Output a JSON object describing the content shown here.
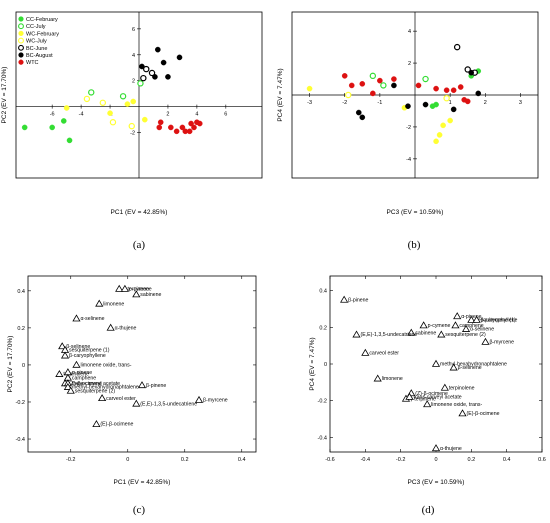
{
  "panel_labels": [
    "(a)",
    "(b)",
    "(c)",
    "(d)"
  ],
  "chart_data": [
    {
      "type": "scatter",
      "panel": "(a)",
      "xlabel": "PC1 (EV = 42.85%)",
      "ylabel": "PC2 (EV = 17.70%)",
      "xlim": [
        -8.5,
        8.5
      ],
      "ylim": [
        -5.5,
        7.3
      ],
      "xticks": [
        -6,
        -4,
        -2,
        2,
        4,
        6
      ],
      "yticks": [
        -2,
        2,
        4,
        6
      ],
      "axes_through_origin": true,
      "legend_position": "top-left",
      "series": [
        {
          "name": "CC-February",
          "color": "#33dd33",
          "filled": true,
          "points": [
            [
              -7.9,
              -1.6
            ],
            [
              -6.0,
              -1.6
            ],
            [
              -5.2,
              -1.1
            ],
            [
              -4.8,
              -2.6
            ]
          ]
        },
        {
          "name": "CC-July",
          "color": "#33dd33",
          "filled": false,
          "points": [
            [
              -3.3,
              1.1
            ],
            [
              -1.1,
              0.8
            ],
            [
              0.1,
              1.8
            ]
          ]
        },
        {
          "name": "WC-February",
          "color": "#ffff33",
          "filled": true,
          "points": [
            [
              -5.0,
              -0.1
            ],
            [
              -2.0,
              -0.5
            ],
            [
              -0.8,
              0.2
            ],
            [
              -0.4,
              0.4
            ],
            [
              0.4,
              -1.0
            ]
          ]
        },
        {
          "name": "WC-July",
          "color": "#ffff33",
          "filled": false,
          "points": [
            [
              -3.6,
              0.6
            ],
            [
              -2.5,
              0.3
            ],
            [
              -1.8,
              -1.2
            ],
            [
              -0.5,
              -1.5
            ]
          ]
        },
        {
          "name": "BC-June",
          "color": "#000000",
          "filled": false,
          "points": [
            [
              0.5,
              2.9
            ],
            [
              0.3,
              2.2
            ],
            [
              0.9,
              2.6
            ]
          ]
        },
        {
          "name": "BC-August",
          "color": "#000000",
          "filled": true,
          "points": [
            [
              0.2,
              3.1
            ],
            [
              1.1,
              2.3
            ],
            [
              1.3,
              4.4
            ],
            [
              2.0,
              2.3
            ],
            [
              2.8,
              3.8
            ],
            [
              1.7,
              3.4
            ]
          ]
        },
        {
          "name": "WTC",
          "color": "#dd1111",
          "filled": true,
          "points": [
            [
              1.5,
              -1.2
            ],
            [
              1.4,
              -1.6
            ],
            [
              2.2,
              -1.6
            ],
            [
              2.6,
              -1.9
            ],
            [
              3.0,
              -1.6
            ],
            [
              3.2,
              -1.9
            ],
            [
              3.5,
              -1.9
            ],
            [
              3.8,
              -1.6
            ],
            [
              4.0,
              -1.2
            ],
            [
              4.2,
              -1.3
            ],
            [
              3.6,
              -1.3
            ]
          ]
        }
      ]
    },
    {
      "type": "scatter",
      "panel": "(b)",
      "xlabel": "PC3 (EV = 10.59%)",
      "ylabel": "PC4 (EV = 7.47%)",
      "xlim": [
        -3.5,
        3.5
      ],
      "ylim": [
        -5.2,
        5.2
      ],
      "xticks": [
        -3,
        -2,
        -1,
        1,
        2,
        3
      ],
      "yticks": [
        -4,
        -2,
        2,
        4
      ],
      "axes_through_origin": true,
      "series": [
        {
          "name": "CC-February",
          "color": "#33dd33",
          "filled": true,
          "points": [
            [
              1.8,
              1.5
            ],
            [
              1.6,
              1.2
            ],
            [
              0.6,
              -0.6
            ],
            [
              0.5,
              -0.7
            ]
          ]
        },
        {
          "name": "CC-July",
          "color": "#33dd33",
          "filled": false,
          "points": [
            [
              -1.2,
              1.2
            ],
            [
              -0.9,
              0.6
            ],
            [
              0.3,
              1.0
            ]
          ]
        },
        {
          "name": "WC-February",
          "color": "#ffff33",
          "filled": true,
          "points": [
            [
              -3.0,
              0.4
            ],
            [
              -0.3,
              -0.8
            ],
            [
              0.8,
              -1.9
            ],
            [
              1.0,
              -1.6
            ],
            [
              0.7,
              -2.5
            ],
            [
              0.6,
              -2.9
            ]
          ]
        },
        {
          "name": "WC-July",
          "color": "#ffff33",
          "filled": false,
          "points": [
            [
              -1.9,
              0.0
            ],
            [
              0.9,
              -0.2
            ]
          ]
        },
        {
          "name": "BC-June",
          "color": "#000000",
          "filled": false,
          "points": [
            [
              1.2,
              3.0
            ],
            [
              1.5,
              1.6
            ],
            [
              1.7,
              1.4
            ]
          ]
        },
        {
          "name": "BC-August",
          "color": "#000000",
          "filled": true,
          "points": [
            [
              -1.6,
              -1.1
            ],
            [
              -1.5,
              -1.4
            ],
            [
              -0.6,
              0.6
            ],
            [
              -0.2,
              -0.7
            ],
            [
              0.3,
              -0.6
            ],
            [
              1.1,
              -0.9
            ],
            [
              1.8,
              0.1
            ],
            [
              1.6,
              1.4
            ]
          ]
        },
        {
          "name": "WTC",
          "color": "#dd1111",
          "filled": true,
          "points": [
            [
              -2.0,
              1.2
            ],
            [
              -1.8,
              0.6
            ],
            [
              -1.5,
              0.7
            ],
            [
              -1.2,
              0.1
            ],
            [
              -1.0,
              0.9
            ],
            [
              -0.6,
              1.0
            ],
            [
              0.1,
              0.6
            ],
            [
              0.6,
              0.4
            ],
            [
              0.9,
              0.3
            ],
            [
              1.1,
              0.3
            ],
            [
              1.3,
              0.5
            ],
            [
              1.4,
              -0.3
            ],
            [
              1.5,
              -0.4
            ]
          ]
        }
      ]
    },
    {
      "type": "scatter",
      "panel": "(c)",
      "xlabel": "PC1 (EV = 42.85%)",
      "ylabel": "PC2 (EV = 17.70%)",
      "xlim": [
        -0.35,
        0.45
      ],
      "ylim": [
        -0.47,
        0.48
      ],
      "xticks": [
        -0.2,
        0,
        0.2,
        0.4
      ],
      "yticks": [
        -0.4,
        -0.2,
        0,
        0.2,
        0.4
      ],
      "marker": "triangle-open",
      "points": [
        {
          "label": "γ-terpinene",
          "x": -0.03,
          "y": 0.41
        },
        {
          "label": "p-cymene",
          "x": -0.01,
          "y": 0.41
        },
        {
          "label": "sabinene",
          "x": 0.03,
          "y": 0.38
        },
        {
          "label": "limonene",
          "x": -0.1,
          "y": 0.33
        },
        {
          "label": "α-selinene",
          "x": -0.18,
          "y": 0.25
        },
        {
          "label": "α-thujene",
          "x": -0.06,
          "y": 0.2
        },
        {
          "label": "β-selinene",
          "x": -0.23,
          "y": 0.1
        },
        {
          "label": "sesquiterpene (1)",
          "x": -0.22,
          "y": 0.08
        },
        {
          "label": "β-caryophyllene",
          "x": -0.22,
          "y": 0.05
        },
        {
          "label": "limonene oxide, trans-",
          "x": -0.18,
          "y": 0.0
        },
        {
          "label": "terpinolene",
          "x": -0.24,
          "y": -0.05
        },
        {
          "label": "α-pinene",
          "x": -0.21,
          "y": -0.04
        },
        {
          "label": "camphene",
          "x": -0.21,
          "y": -0.07
        },
        {
          "label": "(Z)-β-ocimene",
          "x": -0.22,
          "y": -0.1
        },
        {
          "label": "trans-carveyl acetate",
          "x": -0.21,
          "y": -0.1
        },
        {
          "label": "methyl-hexahydronaphtalene",
          "x": -0.21,
          "y": -0.12
        },
        {
          "label": "sesquiterpene (2)",
          "x": -0.2,
          "y": -0.14
        },
        {
          "label": "β-pinene",
          "x": 0.05,
          "y": -0.11
        },
        {
          "label": "carveol ester",
          "x": -0.09,
          "y": -0.18
        },
        {
          "label": "β-myrcene",
          "x": 0.25,
          "y": -0.19
        },
        {
          "label": "(E,E)-1,3,5-undecatriene",
          "x": 0.03,
          "y": -0.21
        },
        {
          "label": "(E)-β-ocimene",
          "x": -0.11,
          "y": -0.32
        }
      ]
    },
    {
      "type": "scatter",
      "panel": "(d)",
      "xlabel": "PC3 (EV = 10.59%)",
      "ylabel": "PC4 (EV = 7.47%)",
      "xlim": [
        -0.6,
        0.6
      ],
      "ylim": [
        -0.48,
        0.48
      ],
      "xticks": [
        -0.6,
        -0.4,
        -0.2,
        0,
        0.2,
        0.4,
        0.6
      ],
      "yticks": [
        -0.4,
        -0.2,
        0,
        0.2,
        0.4
      ],
      "marker": "triangle-open",
      "points": [
        {
          "label": "β-pinene",
          "x": -0.52,
          "y": 0.35
        },
        {
          "label": "α-pinene",
          "x": 0.12,
          "y": 0.26
        },
        {
          "label": "sesquiterpene (1)",
          "x": 0.2,
          "y": 0.24
        },
        {
          "label": "β-caryophyllene",
          "x": 0.23,
          "y": 0.24
        },
        {
          "label": "camphene",
          "x": 0.11,
          "y": 0.21
        },
        {
          "label": "p-cymene",
          "x": -0.07,
          "y": 0.21
        },
        {
          "label": "α-selinene",
          "x": 0.17,
          "y": 0.19
        },
        {
          "label": "sabinene",
          "x": -0.14,
          "y": 0.17
        },
        {
          "label": "(E,E)-1,3,5-undecatriene",
          "x": -0.45,
          "y": 0.16
        },
        {
          "label": "sesquiterpene (2)",
          "x": 0.03,
          "y": 0.16
        },
        {
          "label": "β-myrcene",
          "x": 0.28,
          "y": 0.12
        },
        {
          "label": "carveol ester",
          "x": -0.4,
          "y": 0.06
        },
        {
          "label": "methyl-hexahydronaphtalene",
          "x": 0.0,
          "y": 0.0
        },
        {
          "label": "β-selinene",
          "x": 0.1,
          "y": -0.02
        },
        {
          "label": "limonene",
          "x": -0.33,
          "y": -0.08
        },
        {
          "label": "terpinolene",
          "x": 0.05,
          "y": -0.13
        },
        {
          "label": "(Z)-β-ocimene",
          "x": -0.14,
          "y": -0.16
        },
        {
          "label": "γ-terpinene",
          "x": -0.17,
          "y": -0.19
        },
        {
          "label": "trans-carveyl acetate",
          "x": -0.15,
          "y": -0.18
        },
        {
          "label": "limonene oxide, trans-",
          "x": -0.05,
          "y": -0.22
        },
        {
          "label": "(E)-β-ocimene",
          "x": 0.15,
          "y": -0.27
        },
        {
          "label": "α-thujene",
          "x": 0.0,
          "y": -0.46
        }
      ]
    }
  ]
}
